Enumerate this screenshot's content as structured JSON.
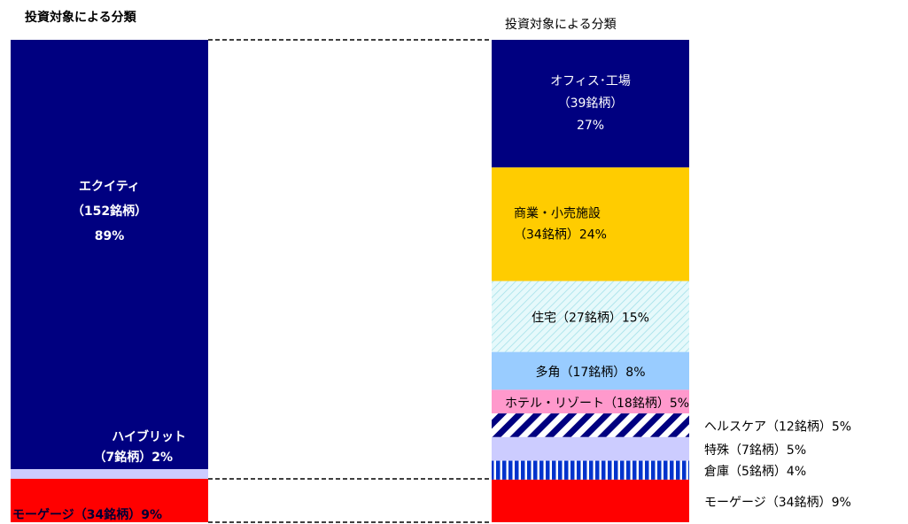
{
  "chart_data": [
    {
      "type": "stacked_bar",
      "title": "投資対象による分類",
      "series": [
        {
          "name": "エクイティ",
          "sub": "（152銘柄）",
          "color": "#000080",
          "values": [
            89
          ],
          "value_labels": [
            "89%"
          ]
        },
        {
          "name": "ハイブリット",
          "sub": "（7銘柄）",
          "color": "#ccccff",
          "values": [
            2
          ],
          "value_labels": [
            "2%"
          ]
        },
        {
          "name": "モーゲージ",
          "sub": "（34銘柄）",
          "color": "#ff0000",
          "values": [
            9
          ],
          "value_labels": [
            "9%"
          ]
        }
      ]
    },
    {
      "type": "stacked_bar",
      "title": "投資対象による分類",
      "series": [
        {
          "name": "オフィス･工場",
          "sub": "（39銘柄）",
          "color": "#000080",
          "values": [
            27
          ],
          "value_labels": [
            "27%"
          ]
        },
        {
          "name": "商業・小売施設",
          "sub": "（34銘柄）",
          "color": "#ffcc00",
          "values": [
            24
          ],
          "value_labels": [
            "24%"
          ]
        },
        {
          "name": "住宅",
          "sub": "（27銘柄）",
          "color": "#e6f9fb",
          "pattern": "hatch",
          "values": [
            15
          ],
          "value_labels": [
            "15%"
          ]
        },
        {
          "name": "多角",
          "sub": "（17銘柄）",
          "color": "#99ccff",
          "values": [
            8
          ],
          "value_labels": [
            "8%"
          ]
        },
        {
          "name": "ホテル・リゾート",
          "sub": "（18銘柄）",
          "color": "#ff99cc",
          "values": [
            5
          ],
          "value_labels": [
            "5%"
          ]
        },
        {
          "name": "ヘルスケア",
          "sub": "（12銘柄）",
          "color": "#000080",
          "pattern": "diagonal",
          "values": [
            5
          ],
          "value_labels": [
            "5%"
          ]
        },
        {
          "name": "特殊",
          "sub": "（7銘柄）",
          "color": "#ccccff",
          "values": [
            5
          ],
          "value_labels": [
            "5%"
          ]
        },
        {
          "name": "倉庫",
          "sub": "（5銘柄）",
          "color": "#0033cc",
          "pattern": "vertical",
          "values": [
            4
          ],
          "value_labels": [
            "4%"
          ]
        },
        {
          "name": "モーゲージ",
          "sub": "（34銘柄）",
          "color": "#ff0000",
          "values": [
            9
          ],
          "value_labels": [
            "9%"
          ]
        }
      ]
    }
  ]
}
